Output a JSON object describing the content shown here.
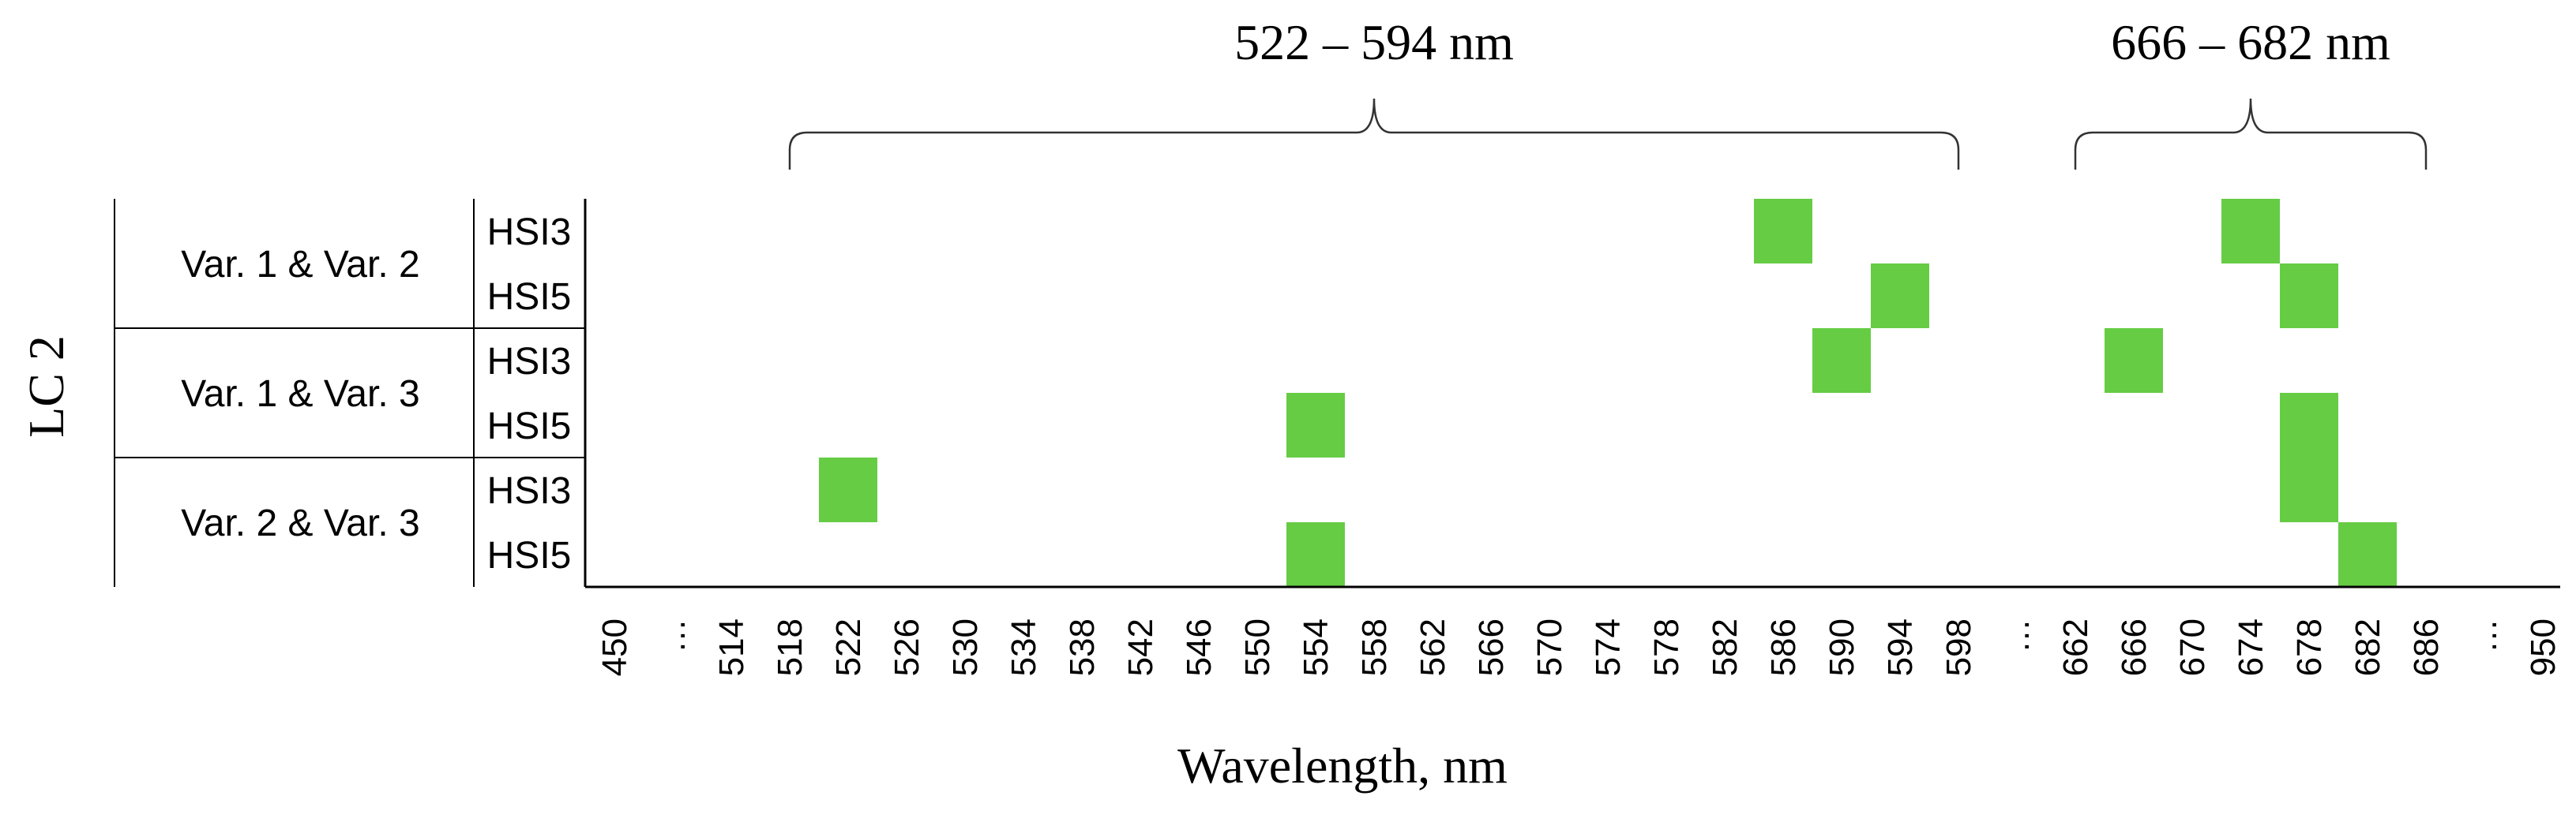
{
  "chart_data": {
    "type": "heatmap",
    "ylabel": "LC 2",
    "xlabel": "Wavelength, nm",
    "columns": [
      "450",
      "…",
      "514",
      "518",
      "522",
      "526",
      "530",
      "534",
      "538",
      "542",
      "546",
      "550",
      "554",
      "558",
      "562",
      "566",
      "570",
      "574",
      "578",
      "582",
      "586",
      "590",
      "594",
      "598",
      "…",
      "662",
      "666",
      "670",
      "674",
      "678",
      "682",
      "686",
      "…",
      "950"
    ],
    "groups": [
      {
        "label": "Var. 1 & Var. 2",
        "rows": [
          "HSI3",
          "HSI5"
        ]
      },
      {
        "label": "Var. 1 & Var. 3",
        "rows": [
          "HSI3",
          "HSI5"
        ]
      },
      {
        "label": "Var. 2 & Var. 3",
        "rows": [
          "HSI3",
          "HSI5"
        ]
      }
    ],
    "selected": [
      {
        "group": "Var. 1 & Var. 2",
        "row": "HSI3",
        "wavelengths": [
          "586",
          "674"
        ]
      },
      {
        "group": "Var. 1 & Var. 2",
        "row": "HSI5",
        "wavelengths": [
          "594",
          "678"
        ]
      },
      {
        "group": "Var. 1 & Var. 3",
        "row": "HSI3",
        "wavelengths": [
          "590",
          "666"
        ]
      },
      {
        "group": "Var. 1 & Var. 3",
        "row": "HSI5",
        "wavelengths": [
          "554",
          "678"
        ]
      },
      {
        "group": "Var. 2 & Var. 3",
        "row": "HSI3",
        "wavelengths": [
          "522",
          "678"
        ]
      },
      {
        "group": "Var. 2 & Var. 3",
        "row": "HSI5",
        "wavelengths": [
          "554",
          "682"
        ]
      }
    ],
    "ranges": [
      {
        "label": "522 – 594 nm",
        "from": "518",
        "to": "598"
      },
      {
        "label": "666 – 682 nm",
        "from": "662",
        "to": "686"
      }
    ],
    "cell_color": "#66cc44",
    "grid": false
  }
}
